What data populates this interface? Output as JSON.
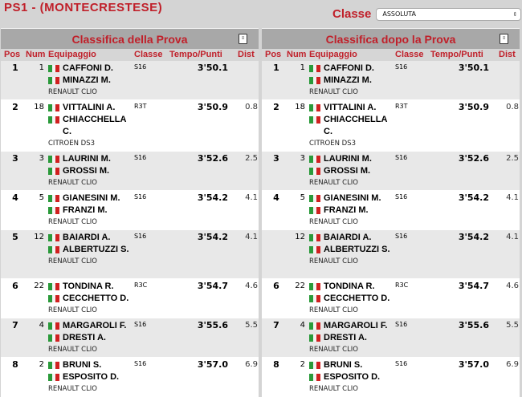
{
  "title": "PS1 - (MONTECRESTESE)",
  "classe": {
    "label": "Classe",
    "selected": "ASSOLUTA"
  },
  "columns": {
    "pos": "Pos",
    "num": "Num",
    "crew": "Equipaggio",
    "classe": "Classe",
    "time": "Tempo/Punti",
    "dist": "Dist"
  },
  "panels": [
    {
      "title": "Classifica della Prova",
      "icon": "print-icon",
      "rows": [
        {
          "pos": "1",
          "num": "1",
          "drivers": [
            "CAFFONI D.",
            "MINAZZI M."
          ],
          "car": "RENAULT CLIO",
          "classe": "S16",
          "time": "3'50.1",
          "dist": ""
        },
        {
          "pos": "2",
          "num": "18",
          "drivers": [
            "VITTALINI A.",
            "CHIACCHELLA C."
          ],
          "car": "CITROEN DS3",
          "classe": "R3T",
          "time": "3'50.9",
          "dist": "0.8"
        },
        {
          "pos": "3",
          "num": "3",
          "drivers": [
            "LAURINI M.",
            "GROSSI M."
          ],
          "car": "RENAULT CLIO",
          "classe": "S16",
          "time": "3'52.6",
          "dist": "2.5"
        },
        {
          "pos": "4",
          "num": "5",
          "drivers": [
            "GIANESINI M.",
            "FRANZI M."
          ],
          "car": "RENAULT CLIO",
          "classe": "S16",
          "time": "3'54.2",
          "dist": "4.1"
        },
        {
          "pos": "5",
          "num": "12",
          "drivers": [
            "BAIARDI A.",
            "ALBERTUZZI S."
          ],
          "car": "RENAULT CLIO",
          "classe": "S16",
          "time": "3'54.2",
          "dist": "4.1"
        },
        {
          "pos": "6",
          "num": "22",
          "drivers": [
            "TONDINA R.",
            "CECCHETTO D."
          ],
          "car": "RENAULT CLIO",
          "classe": "R3C",
          "time": "3'54.7",
          "dist": "4.6"
        },
        {
          "pos": "7",
          "num": "4",
          "drivers": [
            "MARGAROLI F.",
            "DRESTI A."
          ],
          "car": "RENAULT CLIO",
          "classe": "S16",
          "time": "3'55.6",
          "dist": "5.5"
        },
        {
          "pos": "8",
          "num": "2",
          "drivers": [
            "BRUNI S.",
            "ESPOSITO D."
          ],
          "car": "RENAULT CLIO",
          "classe": "S16",
          "time": "3'57.0",
          "dist": "6.9"
        }
      ]
    },
    {
      "title": "Classifica dopo la Prova",
      "icon": "print-icon",
      "rows": [
        {
          "pos": "1",
          "num": "1",
          "drivers": [
            "CAFFONI D.",
            "MINAZZI M."
          ],
          "car": "RENAULT CLIO",
          "classe": "S16",
          "time": "3'50.1",
          "dist": ""
        },
        {
          "pos": "2",
          "num": "18",
          "drivers": [
            "VITTALINI A.",
            "CHIACCHELLA C."
          ],
          "car": "CITROEN DS3",
          "classe": "R3T",
          "time": "3'50.9",
          "dist": "0.8"
        },
        {
          "pos": "3",
          "num": "3",
          "drivers": [
            "LAURINI M.",
            "GROSSI M."
          ],
          "car": "RENAULT CLIO",
          "classe": "S16",
          "time": "3'52.6",
          "dist": "2.5"
        },
        {
          "pos": "4",
          "num": "5",
          "drivers": [
            "GIANESINI M.",
            "FRANZI M."
          ],
          "car": "RENAULT CLIO",
          "classe": "S16",
          "time": "3'54.2",
          "dist": "4.1"
        },
        {
          "pos": "",
          "num": "12",
          "drivers": [
            "BAIARDI A.",
            "ALBERTUZZI S."
          ],
          "car": "RENAULT CLIO",
          "classe": "S16",
          "time": "3'54.2",
          "dist": "4.1"
        },
        {
          "pos": "6",
          "num": "22",
          "drivers": [
            "TONDINA R.",
            "CECCHETTO D."
          ],
          "car": "RENAULT CLIO",
          "classe": "R3C",
          "time": "3'54.7",
          "dist": "4.6"
        },
        {
          "pos": "7",
          "num": "4",
          "drivers": [
            "MARGAROLI F.",
            "DRESTI A."
          ],
          "car": "RENAULT CLIO",
          "classe": "S16",
          "time": "3'55.6",
          "dist": "5.5"
        },
        {
          "pos": "8",
          "num": "2",
          "drivers": [
            "BRUNI S.",
            "ESPOSITO D."
          ],
          "car": "RENAULT CLIO",
          "classe": "S16",
          "time": "3'57.0",
          "dist": "6.9"
        }
      ]
    }
  ]
}
